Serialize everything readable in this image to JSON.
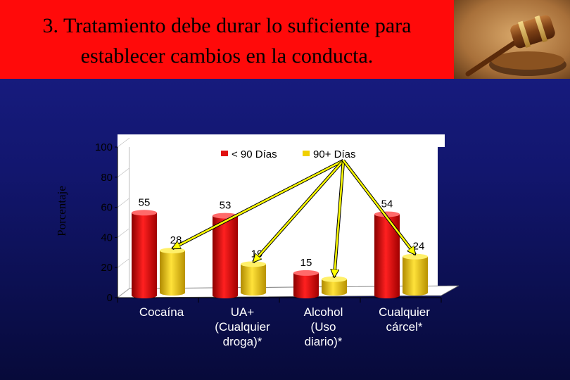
{
  "slide": {
    "title_line_1": "3. Tratamiento debe durar lo suficiente para",
    "title_line_2": "establecer cambios en la conducta.",
    "banner_color": "#ff0a0a",
    "background_color": "#12166e",
    "photo": "judge-gavel-photo"
  },
  "chart_data": {
    "type": "bar",
    "ylabel": "Porcentaje",
    "ylim": [
      0,
      100
    ],
    "yticks": [
      "0",
      "20",
      "40",
      "60",
      "80",
      "100"
    ],
    "categories": [
      [
        "Cocaína"
      ],
      [
        "UA+",
        "(Cualquier",
        "droga)*"
      ],
      [
        "Alcohol",
        "(Uso",
        "diario)*"
      ],
      [
        "Cualquier",
        "cárcel*"
      ]
    ],
    "series": [
      {
        "name": "< 90 Días",
        "color": "#e01010",
        "values": [
          55,
          53,
          15,
          54
        ]
      },
      {
        "name": "90+ Días",
        "color": "#f0d000",
        "values": [
          28,
          19,
          9,
          24
        ]
      }
    ],
    "data_labels": [
      [
        "55",
        "53",
        "15",
        "54"
      ],
      [
        "28",
        "19",
        "",
        "24"
      ]
    ],
    "legend_position": "top",
    "annotation_arrows": "yellow arrows from the 90+ Días legend entry to the 90+ Días bars",
    "arrow_color": "#ffff00"
  }
}
